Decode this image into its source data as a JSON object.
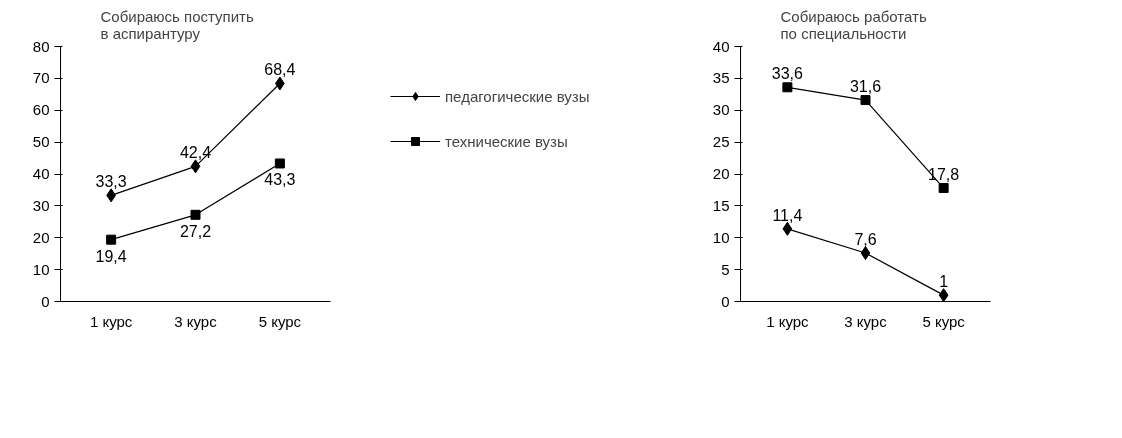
{
  "chart_data": [
    {
      "type": "line",
      "title": "Собираюсь поступить\nв аспирантуру",
      "categories": [
        "1 курс",
        "3 курс",
        "5 курс"
      ],
      "ylim": [
        0,
        80
      ],
      "yticks": [
        0,
        10,
        20,
        30,
        40,
        50,
        60,
        70,
        80
      ],
      "grid": false,
      "legend": "right",
      "series": [
        {
          "name": "педагогические вузы",
          "color": "#000000",
          "marker": "diamond",
          "values": [
            33.3,
            42.4,
            68.4
          ],
          "value_labels": [
            "33,3",
            "42,4",
            "68,4"
          ]
        },
        {
          "name": "технические вузы",
          "color": "#000000",
          "marker": "square",
          "values": [
            19.4,
            27.2,
            43.3
          ],
          "value_labels": [
            "19,4",
            "27,2",
            "43,3"
          ]
        }
      ]
    },
    {
      "type": "line",
      "title": "Собираюсь работать\nпо специальности",
      "categories": [
        "1 курс",
        "3 курс",
        "5 курс"
      ],
      "ylim": [
        0,
        40
      ],
      "yticks": [
        0,
        5,
        10,
        15,
        20,
        25,
        30,
        35,
        40
      ],
      "grid": false,
      "legend": false,
      "series": [
        {
          "color": "#000000",
          "marker": "diamond",
          "values": [
            11.4,
            7.6,
            1
          ],
          "value_labels": [
            "11,4",
            "7,6",
            "1"
          ]
        },
        {
          "color": "#000000",
          "marker": "square",
          "values": [
            33.6,
            31.6,
            17.8
          ],
          "value_labels": [
            "33,6",
            "31,6",
            "17,8"
          ]
        }
      ]
    }
  ]
}
